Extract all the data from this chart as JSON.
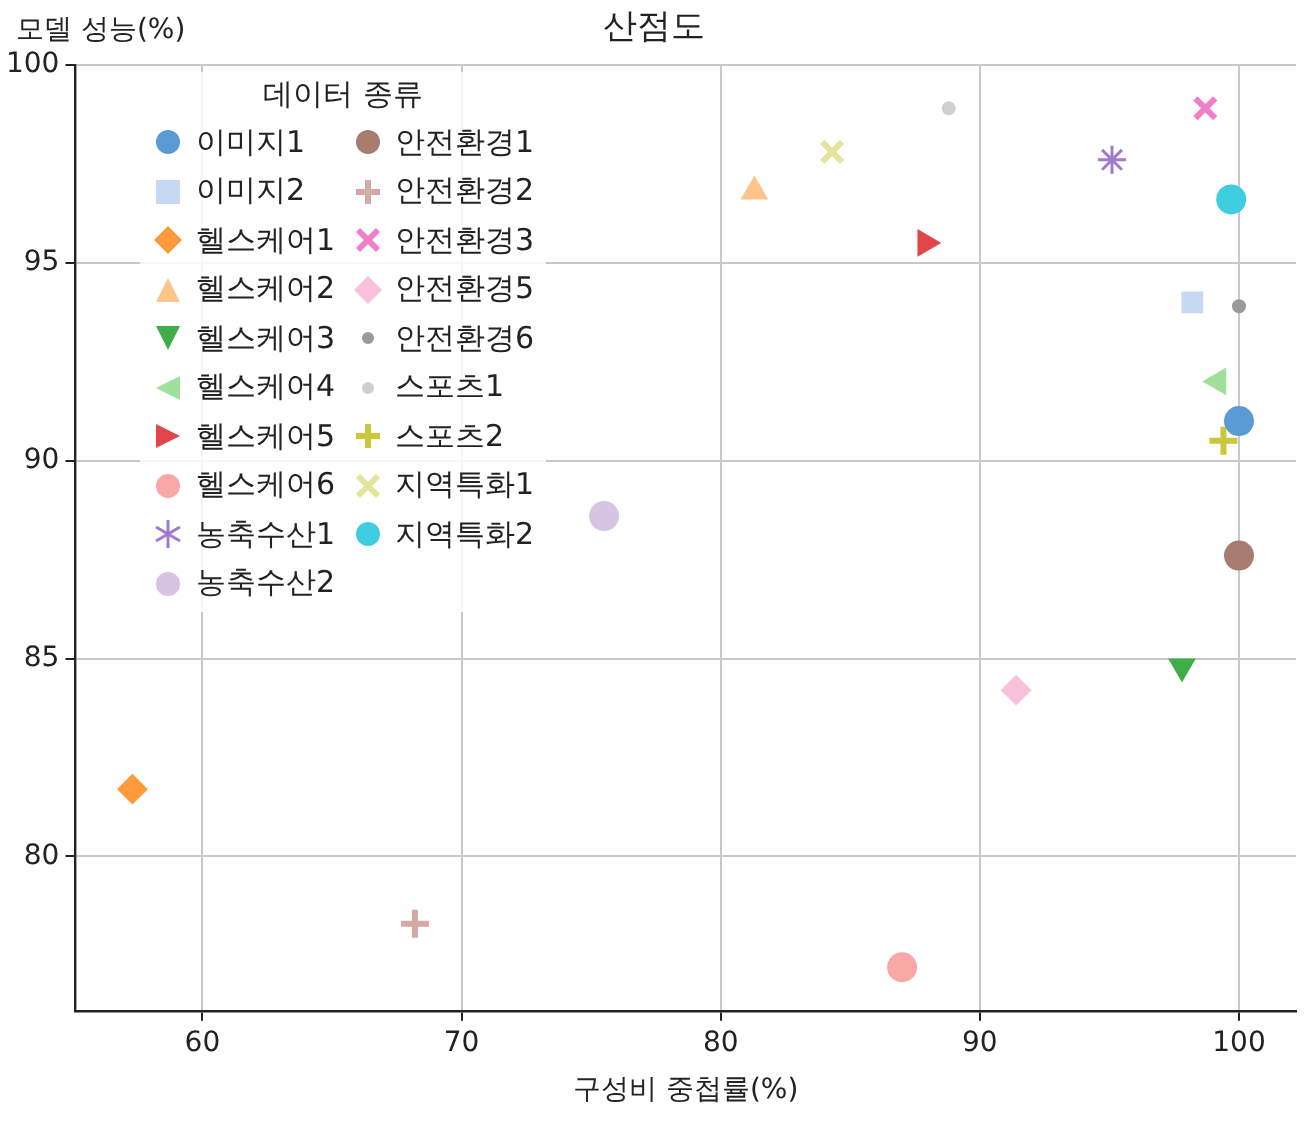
{
  "chart_data": {
    "type": "scatter",
    "title": "산점도",
    "xlabel": "구성비 중첩률(%)",
    "ylabel": "모델 성능(%)",
    "legend_title": "데이터 종류",
    "legend": "top left",
    "grid": true,
    "xlim": [
      55.1,
      102.2
    ],
    "ylim": [
      76.1,
      100
    ],
    "xticks": [
      60,
      70,
      80,
      90,
      100
    ],
    "yticks": [
      80,
      85,
      90,
      95,
      100
    ],
    "series": [
      {
        "name": "이미지1",
        "color": "#5b9bd5",
        "marker": "circle",
        "x": [
          100
        ],
        "values": [
          91
        ]
      },
      {
        "name": "이미지2",
        "color": "#c5d9f5",
        "marker": "square",
        "x": [
          98.2
        ],
        "values": [
          94
        ]
      },
      {
        "name": "헬스케어1",
        "color": "#ff9a3c",
        "marker": "diamond",
        "x": [
          57.3
        ],
        "values": [
          81.7
        ]
      },
      {
        "name": "헬스케어2",
        "color": "#ffc48a",
        "marker": "triangle-up",
        "x": [
          81.3
        ],
        "values": [
          96.8
        ]
      },
      {
        "name": "헬스케어3",
        "color": "#3fae49",
        "marker": "triangle-down",
        "x": [
          97.8
        ],
        "values": [
          84.8
        ]
      },
      {
        "name": "헬스케어4",
        "color": "#9fe09a",
        "marker": "triangle-left",
        "x": [
          99.2
        ],
        "values": [
          92
        ]
      },
      {
        "name": "헬스케어5",
        "color": "#e0464a",
        "marker": "triangle-right",
        "x": [
          87.9
        ],
        "values": [
          95.5
        ]
      },
      {
        "name": "헬스케어6",
        "color": "#f8a8a6",
        "marker": "circle",
        "x": [
          87
        ],
        "values": [
          77.2
        ]
      },
      {
        "name": "농축수산1",
        "color": "#a07acc",
        "marker": "cross",
        "x": [
          95.1
        ],
        "values": [
          97.6
        ]
      },
      {
        "name": "농축수산2",
        "color": "#d7c4e4",
        "marker": "circle",
        "x": [
          75.5
        ],
        "values": [
          88.6
        ]
      },
      {
        "name": "안전환경1",
        "color": "#a87c70",
        "marker": "circle",
        "x": [
          100
        ],
        "values": [
          87.6
        ]
      },
      {
        "name": "안전환경2",
        "color": "#d4a9a4",
        "marker": "plus",
        "x": [
          68.2
        ],
        "values": [
          78.3
        ]
      },
      {
        "name": "안전환경3",
        "color": "#f07fc8",
        "marker": "x",
        "x": [
          98.7
        ],
        "values": [
          98.9
        ]
      },
      {
        "name": "안전환경5",
        "color": "#f9c0dc",
        "marker": "diamond",
        "x": [
          91.4
        ],
        "values": [
          84.2
        ]
      },
      {
        "name": "안전환경6",
        "color": "#9a9a9a",
        "x": [
          100
        ],
        "values": [
          93.9
        ]
      },
      {
        "name": "스포츠1",
        "color": "#cfcfcf",
        "x": [
          88.8
        ],
        "values": [
          98.9
        ]
      },
      {
        "name": "스포츠2",
        "color": "#c8c83a",
        "marker": "plus",
        "x": [
          99.4
        ],
        "values": [
          90.5
        ]
      },
      {
        "name": "지역특화1",
        "color": "#e4e49a",
        "marker": "x",
        "x": [
          84.3
        ],
        "values": [
          97.8
        ]
      },
      {
        "name": "지역특화2",
        "color": "#3fcde0",
        "marker": "circle",
        "x": [
          99.7
        ],
        "values": [
          96.6
        ]
      }
    ]
  }
}
